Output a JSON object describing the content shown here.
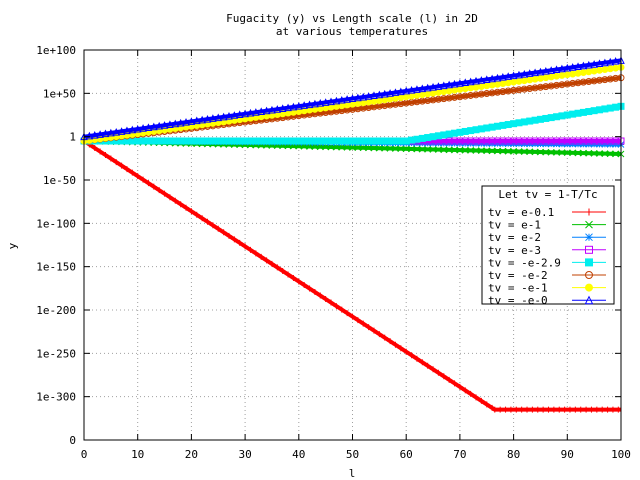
{
  "chart_data": {
    "type": "line",
    "title": "Fugacity (y) vs Length scale (l) in 2D",
    "subtitle": "at various temperatures",
    "xlabel": "l",
    "ylabel": "y",
    "xlim": [
      0,
      100
    ],
    "ylim_log10": [
      -350,
      100
    ],
    "x_ticks": [
      0,
      10,
      20,
      30,
      40,
      50,
      60,
      70,
      80,
      90,
      100
    ],
    "x_tick_labels": [
      "0",
      "10",
      "20",
      "30",
      "40",
      "50",
      "60",
      "70",
      "80",
      "90",
      "100"
    ],
    "y_ticks_log10": [
      -350,
      -300,
      -250,
      -200,
      -150,
      -100,
      -50,
      0,
      50,
      100
    ],
    "y_tick_labels": [
      "0",
      "1e-300",
      "1e-250",
      "1e-200",
      "1e-150",
      "1e-100",
      "1e-50",
      "1",
      "1e+50",
      "1e+100"
    ],
    "y_scale": "log",
    "grid": true,
    "legend_title": "Let tv = 1-T/Tc",
    "legend_position": "right",
    "series": [
      {
        "name": "tv = e-0.1",
        "color": "#ff0000",
        "marker": "plus",
        "points_log10": [
          [
            0,
            -5
          ],
          [
            76.5,
            -315
          ],
          [
            100,
            -315
          ]
        ]
      },
      {
        "name": "tv = e-1",
        "color": "#00c000",
        "marker": "cross",
        "points_log10": [
          [
            0,
            -5
          ],
          [
            100,
            -20
          ]
        ]
      },
      {
        "name": "tv = e-2",
        "color": "#0080ff",
        "marker": "star",
        "points_log10": [
          [
            0,
            -5
          ],
          [
            100,
            -9
          ]
        ]
      },
      {
        "name": "tv = e-3",
        "color": "#c000ff",
        "marker": "square",
        "points_log10": [
          [
            0,
            -5
          ],
          [
            100,
            -5
          ]
        ]
      },
      {
        "name": "tv = -e-2.9",
        "color": "#00eeee",
        "marker": "filled-square",
        "points_log10": [
          [
            0,
            -5
          ],
          [
            60,
            -5
          ],
          [
            100,
            35
          ]
        ]
      },
      {
        "name": "tv = -e-2",
        "color": "#c04000",
        "marker": "circle",
        "points_log10": [
          [
            0,
            -5
          ],
          [
            100,
            68
          ]
        ]
      },
      {
        "name": "tv = -e-1",
        "color": "#ffff00",
        "marker": "filled-circle",
        "points_log10": [
          [
            0,
            -5
          ],
          [
            100,
            80
          ]
        ]
      },
      {
        "name": "tv = -e-0",
        "color": "#0000ff",
        "marker": "triangle",
        "points_log10": [
          [
            0,
            0
          ],
          [
            100,
            88
          ]
        ]
      }
    ]
  }
}
